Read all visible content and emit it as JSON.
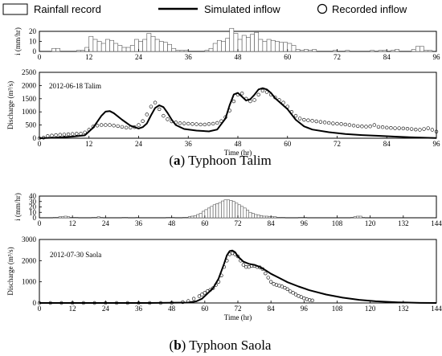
{
  "legend": {
    "rainfall": "Rainfall record",
    "simulated": "Simulated inflow",
    "recorded": "Recorded inflow"
  },
  "chart_data": [
    {
      "panel": "a",
      "caption_letter": "a",
      "caption_text": "Typhoon Talim",
      "annotation": "2012-06-18 Talim",
      "rain": {
        "type": "bar",
        "ylabel": "i (mm/hr)",
        "ylim": [
          0,
          20
        ],
        "yticks": [
          0,
          10,
          20
        ],
        "xlim": [
          0,
          96
        ],
        "xticks": [
          0,
          12,
          24,
          36,
          48,
          60,
          72,
          84,
          96
        ],
        "values": [
          0,
          0,
          0,
          3,
          3,
          0,
          0,
          0,
          0,
          1,
          1,
          4,
          15,
          12,
          10,
          8,
          12,
          11,
          8,
          6,
          4,
          4,
          6,
          12,
          10,
          12,
          18,
          15,
          12,
          10,
          9,
          7,
          3,
          1,
          1,
          1,
          0,
          0,
          0,
          0,
          1,
          3,
          8,
          11,
          10,
          13,
          23,
          18,
          12,
          16,
          14,
          17,
          19,
          12,
          10,
          12,
          11,
          10,
          9,
          9,
          8,
          6,
          2,
          1,
          2,
          1,
          2,
          0,
          0,
          0,
          0,
          1,
          0,
          0,
          1,
          0,
          0,
          0,
          0,
          0,
          1,
          0,
          1,
          1,
          0,
          1,
          2,
          0,
          0,
          0,
          2,
          5,
          5,
          1,
          1,
          0
        ]
      },
      "flow": {
        "type": "line",
        "xlabel": "Time (hr)",
        "ylabel": "Discharge (m³/s)",
        "xlim": [
          0,
          96
        ],
        "ylim": [
          0,
          2500
        ],
        "yticks": [
          0,
          500,
          1000,
          1500,
          2000,
          2500
        ],
        "xticks": [
          0,
          12,
          24,
          36,
          48,
          60,
          72,
          84,
          96
        ],
        "simulated": {
          "x": [
            0,
            4,
            8,
            11,
            13,
            15,
            16,
            17,
            18,
            20,
            22,
            24,
            25,
            26,
            27,
            28,
            29,
            30,
            31,
            32,
            33,
            35,
            38,
            41,
            43,
            45,
            46,
            47,
            48,
            49,
            50,
            51,
            52,
            53,
            54,
            55,
            56,
            57,
            58,
            60,
            62,
            64,
            66,
            70,
            74,
            78,
            82,
            86,
            90,
            94,
            96
          ],
          "y": [
            0,
            20,
            60,
            110,
            400,
            850,
            1010,
            1030,
            950,
            700,
            480,
            370,
            420,
            560,
            870,
            1150,
            1250,
            1180,
            960,
            700,
            500,
            350,
            290,
            260,
            330,
            750,
            1250,
            1660,
            1720,
            1580,
            1430,
            1480,
            1650,
            1850,
            1900,
            1850,
            1720,
            1520,
            1380,
            1100,
            700,
            450,
            330,
            230,
            160,
            120,
            90,
            60,
            35,
            15,
            5
          ]
        },
        "recorded": {
          "x": [
            0,
            1,
            2,
            3,
            4,
            5,
            6,
            7,
            8,
            9,
            10,
            11,
            12,
            13,
            14,
            15,
            16,
            17,
            18,
            19,
            20,
            21,
            22,
            23,
            24,
            25,
            26,
            27,
            28,
            29,
            30,
            31,
            32,
            33,
            34,
            35,
            36,
            37,
            38,
            39,
            40,
            41,
            42,
            43,
            44,
            45,
            46,
            47,
            48,
            49,
            50,
            51,
            52,
            53,
            54,
            55,
            56,
            57,
            58,
            59,
            60,
            61,
            62,
            63,
            64,
            65,
            66,
            67,
            68,
            69,
            70,
            71,
            72,
            73,
            74,
            75,
            76,
            77,
            78,
            79,
            80,
            81,
            82,
            83,
            84,
            85,
            86,
            87,
            88,
            89,
            90,
            91,
            92,
            93,
            94,
            95,
            96
          ],
          "y": [
            0,
            20,
            80,
            100,
            120,
            130,
            140,
            150,
            160,
            170,
            170,
            220,
            320,
            440,
            480,
            500,
            500,
            500,
            480,
            460,
            430,
            400,
            400,
            420,
            500,
            650,
            900,
            1200,
            1350,
            1100,
            850,
            720,
            640,
            600,
            570,
            560,
            550,
            540,
            530,
            520,
            520,
            540,
            550,
            580,
            650,
            800,
            1050,
            1400,
            1650,
            1700,
            1500,
            1400,
            1450,
            1650,
            1800,
            1750,
            1650,
            1550,
            1450,
            1350,
            1200,
            1000,
            850,
            750,
            700,
            680,
            660,
            640,
            620,
            600,
            580,
            560,
            550,
            540,
            520,
            500,
            480,
            460,
            450,
            440,
            450,
            500,
            430,
            420,
            400,
            390,
            380,
            380,
            370,
            360,
            350,
            330,
            320,
            350,
            380,
            320,
            250
          ]
        }
      }
    },
    {
      "panel": "b",
      "caption_letter": "b",
      "caption_text": "Typhoon Saola",
      "annotation": "2012-07-30  Saola",
      "rain": {
        "type": "bar",
        "ylabel": "i (mm/hr)",
        "ylim": [
          0,
          40
        ],
        "yticks": [
          0,
          10,
          20,
          30,
          40
        ],
        "xlim": [
          0,
          144
        ],
        "xticks": [
          0,
          12,
          24,
          36,
          48,
          60,
          72,
          84,
          96,
          108,
          120,
          132,
          144
        ],
        "values": [
          0,
          0,
          0,
          0,
          0,
          1,
          1,
          2,
          2,
          3,
          2,
          1,
          1,
          1,
          0,
          0,
          0,
          0,
          0,
          1,
          1,
          2,
          1,
          0,
          0,
          0,
          0,
          0,
          0,
          0,
          1,
          1,
          0,
          0,
          0,
          1,
          0,
          0,
          0,
          0,
          0,
          0,
          0,
          0,
          0,
          0,
          1,
          1,
          1,
          0,
          0,
          0,
          1,
          1,
          2,
          3,
          4,
          6,
          8,
          12,
          15,
          18,
          21,
          24,
          26,
          28,
          31,
          33,
          33,
          32,
          30,
          27,
          24,
          21,
          18,
          14,
          10,
          8,
          6,
          5,
          4,
          3,
          3,
          2,
          2,
          2,
          1,
          1,
          1,
          0,
          0,
          0,
          0,
          0,
          1,
          1,
          1,
          0,
          0,
          0,
          0,
          0,
          0,
          0,
          0,
          0,
          0,
          0,
          0,
          0,
          0,
          0,
          0,
          1,
          2,
          3,
          3,
          1,
          0,
          0,
          0,
          0,
          0,
          0,
          0,
          0,
          0,
          0,
          0,
          0,
          0,
          0,
          0,
          0,
          0,
          0,
          0,
          0,
          0,
          0,
          0,
          0,
          0,
          0
        ]
      },
      "flow": {
        "type": "line",
        "xlabel": "Time (hr)",
        "ylabel": "Discharge (m³/s)",
        "xlim": [
          0,
          144
        ],
        "ylim": [
          0,
          3000
        ],
        "yticks": [
          0,
          1000,
          2000,
          3000
        ],
        "xticks": [
          0,
          12,
          24,
          36,
          48,
          60,
          72,
          84,
          96,
          108,
          120,
          132,
          144
        ],
        "simulated": {
          "x": [
            0,
            20,
            40,
            54,
            57,
            59,
            61,
            63,
            65,
            67,
            68,
            69,
            70,
            71,
            72,
            74,
            76,
            78,
            80,
            82,
            84,
            87,
            90,
            94,
            98,
            104,
            110,
            116,
            122,
            130,
            138,
            144
          ],
          "y": [
            0,
            0,
            0,
            20,
            80,
            200,
            450,
            700,
            1150,
            1850,
            2250,
            2450,
            2480,
            2400,
            2200,
            1950,
            1850,
            1800,
            1700,
            1550,
            1380,
            1180,
            980,
            780,
            600,
            400,
            250,
            150,
            80,
            30,
            5,
            0
          ]
        },
        "recorded": {
          "x": [
            0,
            4,
            8,
            12,
            16,
            20,
            24,
            28,
            32,
            36,
            40,
            44,
            48,
            52,
            54,
            56,
            58,
            59,
            60,
            61,
            62,
            63,
            64,
            65,
            66,
            67,
            68,
            69,
            70,
            71,
            72,
            73,
            74,
            75,
            76,
            77,
            78,
            79,
            80,
            81,
            82,
            83,
            84,
            85,
            86,
            87,
            88,
            89,
            90,
            91,
            92,
            93,
            94,
            95,
            96,
            97,
            98,
            99
          ],
          "y": [
            0,
            0,
            0,
            0,
            0,
            0,
            0,
            0,
            0,
            0,
            0,
            0,
            10,
            40,
            90,
            200,
            320,
            400,
            480,
            560,
            620,
            700,
            850,
            1000,
            1300,
            1700,
            2000,
            2300,
            2350,
            2300,
            2200,
            2000,
            1800,
            1700,
            1700,
            1750,
            1750,
            1700,
            1680,
            1600,
            1400,
            1200,
            1000,
            900,
            850,
            820,
            780,
            720,
            650,
            550,
            480,
            400,
            330,
            280,
            220,
            180,
            140,
            120
          ]
        }
      }
    }
  ]
}
